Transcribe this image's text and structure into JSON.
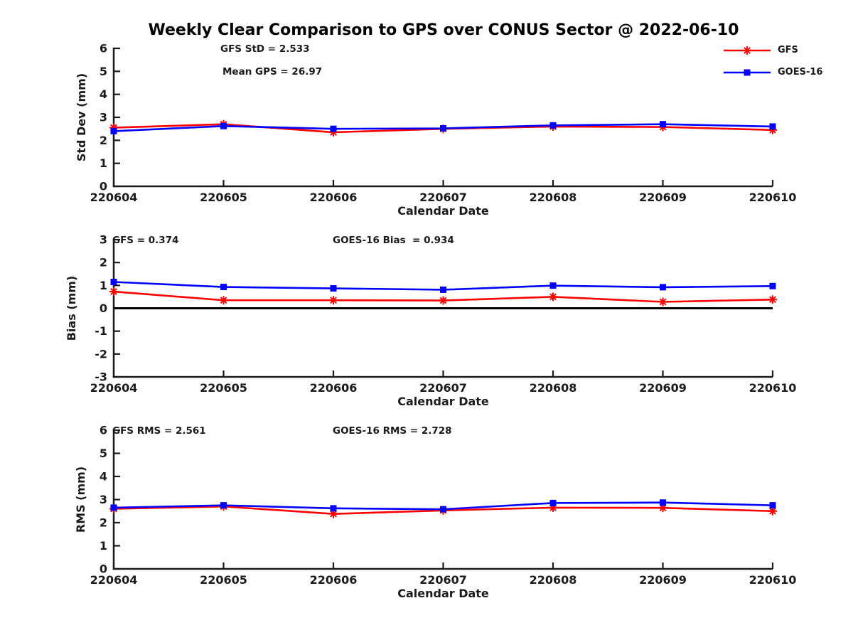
{
  "title": "Weekly Clear Comparison to GPS over CONUS Sector @ 2022-06-10",
  "legend": {
    "position": "top-right-outside",
    "items": [
      {
        "label": "GFS",
        "color": "#ff0000",
        "marker": "asterisk"
      },
      {
        "label": "GOES-16",
        "color": "#0000ff",
        "marker": "square"
      }
    ]
  },
  "chart_data": [
    {
      "type": "line",
      "ylabel": "Std Dev (mm)",
      "xlabel": "Calendar Date",
      "ylim": [
        0,
        6
      ],
      "yticks": [
        0,
        1,
        2,
        3,
        4,
        5,
        6
      ],
      "grid": false,
      "categories": [
        "220604",
        "220605",
        "220606",
        "220607",
        "220608",
        "220609",
        "220610"
      ],
      "annotations": [
        "GFS StD = 2.533",
        "Mean GPS = 26.97"
      ],
      "series": [
        {
          "name": "GFS",
          "color": "#ff0000",
          "marker": "asterisk",
          "values": [
            2.55,
            2.7,
            2.35,
            2.5,
            2.6,
            2.58,
            2.45
          ]
        },
        {
          "name": "GOES-16",
          "color": "#0000ff",
          "marker": "square",
          "values": [
            2.4,
            2.62,
            2.5,
            2.52,
            2.65,
            2.7,
            2.6
          ]
        }
      ]
    },
    {
      "type": "line",
      "ylabel": "Bias (mm)",
      "xlabel": "Calendar Date",
      "ylim": [
        -3,
        3
      ],
      "yticks": [
        -3,
        -2,
        -1,
        0,
        1,
        2,
        3
      ],
      "zero_line": true,
      "grid": false,
      "categories": [
        "220604",
        "220605",
        "220606",
        "220607",
        "220608",
        "220609",
        "220610"
      ],
      "annotations": [
        "GFS = 0.374",
        "GOES-16 Bias  = 0.934"
      ],
      "series": [
        {
          "name": "GFS",
          "color": "#ff0000",
          "marker": "asterisk",
          "values": [
            0.73,
            0.35,
            0.35,
            0.34,
            0.5,
            0.28,
            0.38
          ]
        },
        {
          "name": "GOES-16",
          "color": "#0000ff",
          "marker": "square",
          "values": [
            1.15,
            0.93,
            0.87,
            0.81,
            0.99,
            0.92,
            0.97
          ]
        }
      ]
    },
    {
      "type": "line",
      "ylabel": "RMS (mm)",
      "xlabel": "Calendar Date",
      "ylim": [
        0,
        6
      ],
      "yticks": [
        0,
        1,
        2,
        3,
        4,
        5,
        6
      ],
      "grid": false,
      "categories": [
        "220604",
        "220605",
        "220606",
        "220607",
        "220608",
        "220609",
        "220610"
      ],
      "annotations": [
        "GFS RMS = 2.561",
        "GOES-16 RMS = 2.728"
      ],
      "series": [
        {
          "name": "GFS",
          "color": "#ff0000",
          "marker": "asterisk",
          "values": [
            2.6,
            2.7,
            2.38,
            2.53,
            2.65,
            2.64,
            2.5
          ]
        },
        {
          "name": "GOES-16",
          "color": "#0000ff",
          "marker": "square",
          "values": [
            2.65,
            2.75,
            2.62,
            2.58,
            2.85,
            2.87,
            2.75
          ]
        }
      ]
    }
  ]
}
